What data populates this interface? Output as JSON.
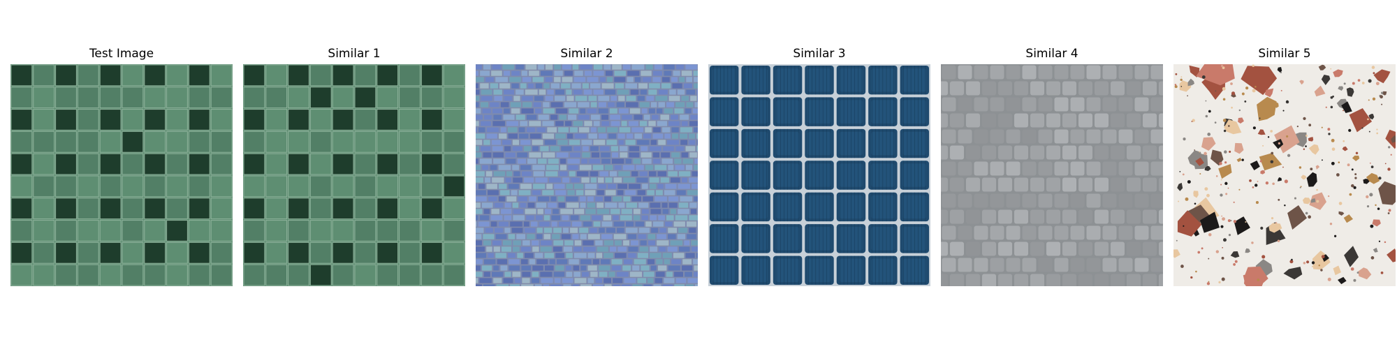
{
  "panels": [
    {
      "title": "Test Image",
      "texture": "green-square-tiles-icon"
    },
    {
      "title": "Similar 1",
      "texture": "green-square-tiles-icon"
    },
    {
      "title": "Similar 2",
      "texture": "blue-mosaic-tiles-icon"
    },
    {
      "title": "Similar 3",
      "texture": "solar-panel-cells-icon"
    },
    {
      "title": "Similar 4",
      "texture": "gray-cobblestone-icon"
    },
    {
      "title": "Similar 5",
      "texture": "terrazzo-chips-icon"
    }
  ],
  "colors": {
    "green_light": "#5b8a6f",
    "green_dark": "#1e3d2c",
    "green_grout": "#8fb39c",
    "mosaic_base": "#6f86c4",
    "solar_cell": "#1f4a6e",
    "solar_grid": "#c7d0d8",
    "cobble_base": "#9ea3a6",
    "terrazzo_base": "#efece7"
  }
}
